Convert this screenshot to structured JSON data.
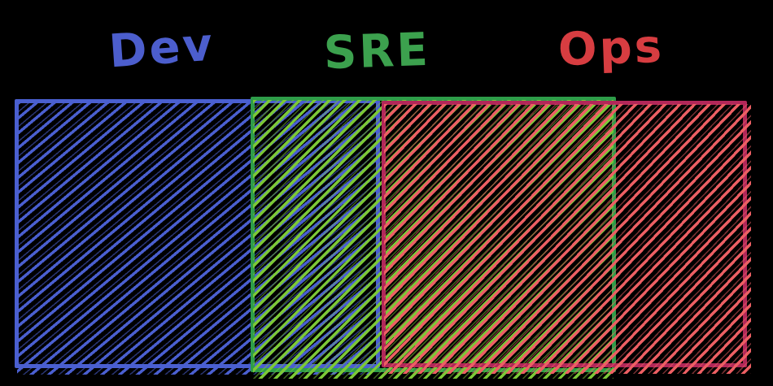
{
  "diagram": {
    "kind": "overlap-diagram",
    "style": "hand-drawn-sketch",
    "groups": [
      {
        "id": "dev",
        "label": "Dev",
        "label_color": "#4c5ecd",
        "stroke_color": "#4a5fd0",
        "hatch_color": "#4a5fd0"
      },
      {
        "id": "sre",
        "label": "SRE",
        "label_color": "#3ca14e",
        "stroke_color": "#2e9c49",
        "hatch_color": "#7cc837"
      },
      {
        "id": "ops",
        "label": "Ops",
        "label_color": "#d73d41",
        "stroke_color": "#b22759",
        "hatch_color": "#ec5f63"
      }
    ]
  },
  "colors": {
    "background": "#000000",
    "dev_stroke": "#4a5fd0",
    "dev_label": "#4c5ecd",
    "sre_stroke": "#2e9c49",
    "sre_hatch": "#7cc837",
    "sre_label": "#3ca14e",
    "ops_stroke": "#b22759",
    "ops_hatch": "#ec5f63",
    "ops_label": "#d73d41"
  }
}
